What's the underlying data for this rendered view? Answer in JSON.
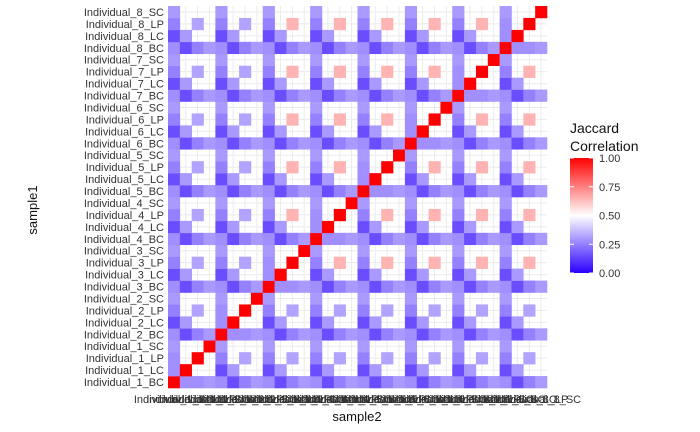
{
  "chart_data": {
    "type": "heatmap",
    "xlabel": "sample2",
    "ylabel": "sample1",
    "categories": [
      "Individual_1_BC",
      "Individual_1_LC",
      "Individual_1_LP",
      "Individual_1_SC",
      "Individual_2_BC",
      "Individual_2_LC",
      "Individual_2_LP",
      "Individual_2_SC",
      "Individual_3_BC",
      "Individual_3_LC",
      "Individual_3_LP",
      "Individual_3_SC",
      "Individual_4_BC",
      "Individual_4_LC",
      "Individual_4_LP",
      "Individual_4_SC",
      "Individual_5_BC",
      "Individual_5_LC",
      "Individual_5_LP",
      "Individual_5_SC",
      "Individual_6_BC",
      "Individual_6_LC",
      "Individual_6_LP",
      "Individual_6_SC",
      "Individual_7_BC",
      "Individual_7_LC",
      "Individual_7_LP",
      "Individual_7_SC",
      "Individual_8_BC",
      "Individual_8_LC",
      "Individual_8_LP",
      "Individual_8_SC"
    ],
    "values": [
      [
        1.0,
        0.28,
        0.28,
        0.3,
        0.28,
        0.15,
        0.25,
        0.3,
        0.28,
        0.15,
        0.25,
        0.3,
        0.28,
        0.15,
        0.25,
        0.3,
        0.28,
        0.15,
        0.25,
        0.3,
        0.28,
        0.15,
        0.25,
        0.3,
        0.28,
        0.15,
        0.25,
        0.3,
        0.28,
        0.15,
        0.25,
        0.3
      ],
      [
        0.28,
        1.0,
        0.35,
        0.4,
        0.15,
        0.3,
        0.4,
        0.35,
        0.15,
        0.3,
        0.4,
        0.35,
        0.15,
        0.3,
        0.4,
        0.35,
        0.15,
        0.3,
        0.4,
        0.35,
        0.15,
        0.3,
        0.4,
        0.35,
        0.15,
        0.3,
        0.4,
        0.35,
        0.15,
        0.3,
        0.4,
        0.35
      ],
      [
        0.28,
        0.35,
        1.0,
        0.3,
        0.25,
        0.4,
        0.32,
        0.3,
        0.25,
        0.4,
        0.32,
        0.3,
        0.25,
        0.4,
        0.32,
        0.3,
        0.25,
        0.4,
        0.32,
        0.3,
        0.25,
        0.4,
        0.32,
        0.3,
        0.25,
        0.4,
        0.32,
        0.3,
        0.25,
        0.4,
        0.32,
        0.3
      ],
      [
        0.3,
        0.4,
        0.3,
        1.0,
        0.3,
        0.35,
        0.3,
        0.4,
        0.3,
        0.35,
        0.3,
        0.4,
        0.3,
        0.35,
        0.3,
        0.4,
        0.3,
        0.35,
        0.3,
        0.4,
        0.3,
        0.35,
        0.3,
        0.4,
        0.3,
        0.35,
        0.3,
        0.4,
        0.3,
        0.35,
        0.3,
        0.4
      ],
      [
        0.28,
        0.15,
        0.25,
        0.3,
        1.0,
        0.28,
        0.28,
        0.3,
        0.28,
        0.15,
        0.25,
        0.3,
        0.28,
        0.15,
        0.25,
        0.3,
        0.28,
        0.15,
        0.25,
        0.3,
        0.28,
        0.15,
        0.25,
        0.3,
        0.28,
        0.15,
        0.25,
        0.3,
        0.28,
        0.15,
        0.25,
        0.3
      ],
      [
        0.15,
        0.3,
        0.4,
        0.35,
        0.28,
        1.0,
        0.35,
        0.4,
        0.15,
        0.3,
        0.4,
        0.35,
        0.15,
        0.3,
        0.4,
        0.35,
        0.15,
        0.3,
        0.4,
        0.35,
        0.15,
        0.3,
        0.4,
        0.35,
        0.15,
        0.3,
        0.4,
        0.35,
        0.15,
        0.3,
        0.4,
        0.35
      ],
      [
        0.25,
        0.4,
        0.32,
        0.3,
        0.28,
        0.35,
        1.0,
        0.3,
        0.25,
        0.4,
        0.32,
        0.3,
        0.25,
        0.4,
        0.32,
        0.3,
        0.25,
        0.4,
        0.32,
        0.3,
        0.25,
        0.4,
        0.32,
        0.3,
        0.25,
        0.4,
        0.32,
        0.3,
        0.25,
        0.4,
        0.32,
        0.3
      ],
      [
        0.3,
        0.35,
        0.3,
        0.4,
        0.3,
        0.4,
        0.3,
        1.0,
        0.3,
        0.35,
        0.3,
        0.4,
        0.3,
        0.35,
        0.3,
        0.4,
        0.3,
        0.35,
        0.3,
        0.4,
        0.3,
        0.35,
        0.3,
        0.4,
        0.3,
        0.35,
        0.3,
        0.4,
        0.3,
        0.35,
        0.3,
        0.4
      ],
      [
        0.28,
        0.15,
        0.25,
        0.3,
        0.28,
        0.15,
        0.25,
        0.3,
        1.0,
        0.28,
        0.28,
        0.3,
        0.28,
        0.15,
        0.25,
        0.3,
        0.28,
        0.15,
        0.25,
        0.3,
        0.28,
        0.15,
        0.25,
        0.3,
        0.28,
        0.15,
        0.25,
        0.3,
        0.28,
        0.15,
        0.25,
        0.3
      ],
      [
        0.15,
        0.3,
        0.4,
        0.35,
        0.15,
        0.3,
        0.4,
        0.35,
        0.28,
        1.0,
        0.35,
        0.4,
        0.15,
        0.3,
        0.55,
        0.35,
        0.15,
        0.3,
        0.55,
        0.35,
        0.15,
        0.3,
        0.55,
        0.35,
        0.15,
        0.3,
        0.55,
        0.35,
        0.15,
        0.3,
        0.55,
        0.35
      ],
      [
        0.25,
        0.4,
        0.32,
        0.3,
        0.25,
        0.4,
        0.32,
        0.3,
        0.28,
        0.35,
        1.0,
        0.3,
        0.25,
        0.55,
        0.65,
        0.3,
        0.25,
        0.55,
        0.65,
        0.3,
        0.25,
        0.55,
        0.65,
        0.3,
        0.25,
        0.55,
        0.65,
        0.3,
        0.25,
        0.55,
        0.65,
        0.3
      ],
      [
        0.3,
        0.35,
        0.3,
        0.4,
        0.3,
        0.35,
        0.3,
        0.4,
        0.3,
        0.4,
        0.3,
        1.0,
        0.3,
        0.35,
        0.3,
        0.4,
        0.3,
        0.35,
        0.3,
        0.4,
        0.3,
        0.35,
        0.3,
        0.4,
        0.3,
        0.35,
        0.3,
        0.4,
        0.3,
        0.35,
        0.3,
        0.4
      ],
      [
        0.28,
        0.15,
        0.25,
        0.3,
        0.28,
        0.15,
        0.25,
        0.3,
        0.28,
        0.15,
        0.25,
        0.3,
        1.0,
        0.28,
        0.28,
        0.3,
        0.28,
        0.15,
        0.25,
        0.3,
        0.28,
        0.15,
        0.25,
        0.3,
        0.28,
        0.15,
        0.25,
        0.3,
        0.28,
        0.15,
        0.25,
        0.3
      ],
      [
        0.15,
        0.3,
        0.4,
        0.35,
        0.15,
        0.3,
        0.4,
        0.35,
        0.15,
        0.3,
        0.55,
        0.35,
        0.28,
        1.0,
        0.35,
        0.4,
        0.15,
        0.3,
        0.55,
        0.35,
        0.15,
        0.3,
        0.55,
        0.35,
        0.15,
        0.3,
        0.55,
        0.35,
        0.15,
        0.3,
        0.55,
        0.35
      ],
      [
        0.25,
        0.4,
        0.32,
        0.3,
        0.25,
        0.4,
        0.32,
        0.3,
        0.25,
        0.55,
        0.65,
        0.3,
        0.28,
        0.35,
        1.0,
        0.3,
        0.25,
        0.55,
        0.65,
        0.3,
        0.25,
        0.55,
        0.65,
        0.3,
        0.25,
        0.55,
        0.65,
        0.3,
        0.25,
        0.55,
        0.65,
        0.3
      ],
      [
        0.3,
        0.35,
        0.3,
        0.4,
        0.3,
        0.35,
        0.3,
        0.4,
        0.3,
        0.35,
        0.3,
        0.4,
        0.3,
        0.4,
        0.3,
        1.0,
        0.3,
        0.35,
        0.3,
        0.4,
        0.3,
        0.35,
        0.3,
        0.4,
        0.3,
        0.35,
        0.3,
        0.4,
        0.3,
        0.35,
        0.3,
        0.4
      ],
      [
        0.28,
        0.15,
        0.25,
        0.3,
        0.28,
        0.15,
        0.25,
        0.3,
        0.28,
        0.15,
        0.25,
        0.3,
        0.28,
        0.15,
        0.25,
        0.3,
        1.0,
        0.28,
        0.28,
        0.3,
        0.28,
        0.15,
        0.25,
        0.3,
        0.28,
        0.15,
        0.25,
        0.3,
        0.28,
        0.15,
        0.25,
        0.3
      ],
      [
        0.15,
        0.3,
        0.4,
        0.35,
        0.15,
        0.3,
        0.4,
        0.35,
        0.15,
        0.3,
        0.55,
        0.35,
        0.15,
        0.3,
        0.55,
        0.35,
        0.28,
        1.0,
        0.35,
        0.4,
        0.15,
        0.3,
        0.55,
        0.35,
        0.15,
        0.3,
        0.55,
        0.35,
        0.15,
        0.3,
        0.55,
        0.35
      ],
      [
        0.25,
        0.4,
        0.32,
        0.3,
        0.25,
        0.4,
        0.32,
        0.3,
        0.25,
        0.55,
        0.65,
        0.3,
        0.25,
        0.55,
        0.65,
        0.3,
        0.28,
        0.35,
        1.0,
        0.3,
        0.25,
        0.55,
        0.65,
        0.3,
        0.25,
        0.55,
        0.65,
        0.3,
        0.25,
        0.55,
        0.65,
        0.3
      ],
      [
        0.3,
        0.35,
        0.3,
        0.4,
        0.3,
        0.35,
        0.3,
        0.4,
        0.3,
        0.35,
        0.3,
        0.4,
        0.3,
        0.35,
        0.3,
        0.4,
        0.3,
        0.4,
        0.3,
        1.0,
        0.3,
        0.35,
        0.3,
        0.4,
        0.3,
        0.35,
        0.3,
        0.4,
        0.3,
        0.35,
        0.3,
        0.4
      ],
      [
        0.28,
        0.15,
        0.25,
        0.3,
        0.28,
        0.15,
        0.25,
        0.3,
        0.28,
        0.15,
        0.25,
        0.3,
        0.28,
        0.15,
        0.25,
        0.3,
        0.28,
        0.15,
        0.25,
        0.3,
        1.0,
        0.28,
        0.28,
        0.3,
        0.28,
        0.15,
        0.25,
        0.3,
        0.28,
        0.15,
        0.25,
        0.3
      ],
      [
        0.15,
        0.3,
        0.4,
        0.35,
        0.15,
        0.3,
        0.4,
        0.35,
        0.15,
        0.3,
        0.55,
        0.35,
        0.15,
        0.3,
        0.55,
        0.35,
        0.15,
        0.3,
        0.55,
        0.35,
        0.28,
        1.0,
        0.35,
        0.4,
        0.15,
        0.3,
        0.55,
        0.35,
        0.15,
        0.3,
        0.55,
        0.35
      ],
      [
        0.25,
        0.4,
        0.32,
        0.3,
        0.25,
        0.4,
        0.32,
        0.3,
        0.25,
        0.55,
        0.65,
        0.3,
        0.25,
        0.55,
        0.65,
        0.3,
        0.25,
        0.55,
        0.65,
        0.3,
        0.28,
        0.35,
        1.0,
        0.3,
        0.25,
        0.55,
        0.65,
        0.3,
        0.25,
        0.55,
        0.65,
        0.3
      ],
      [
        0.3,
        0.35,
        0.3,
        0.4,
        0.3,
        0.35,
        0.3,
        0.4,
        0.3,
        0.35,
        0.3,
        0.4,
        0.3,
        0.35,
        0.3,
        0.4,
        0.3,
        0.35,
        0.3,
        0.4,
        0.3,
        0.4,
        0.3,
        1.0,
        0.3,
        0.35,
        0.3,
        0.4,
        0.3,
        0.35,
        0.3,
        0.4
      ],
      [
        0.28,
        0.15,
        0.25,
        0.3,
        0.28,
        0.15,
        0.25,
        0.3,
        0.28,
        0.15,
        0.25,
        0.3,
        0.28,
        0.15,
        0.25,
        0.3,
        0.28,
        0.15,
        0.25,
        0.3,
        0.28,
        0.15,
        0.25,
        0.3,
        1.0,
        0.28,
        0.28,
        0.3,
        0.28,
        0.15,
        0.25,
        0.3
      ],
      [
        0.15,
        0.3,
        0.4,
        0.35,
        0.15,
        0.3,
        0.4,
        0.35,
        0.15,
        0.3,
        0.55,
        0.35,
        0.15,
        0.3,
        0.55,
        0.35,
        0.15,
        0.3,
        0.55,
        0.35,
        0.15,
        0.3,
        0.55,
        0.35,
        0.28,
        1.0,
        0.35,
        0.4,
        0.15,
        0.3,
        0.55,
        0.35
      ],
      [
        0.25,
        0.4,
        0.32,
        0.3,
        0.25,
        0.4,
        0.32,
        0.3,
        0.25,
        0.55,
        0.65,
        0.3,
        0.25,
        0.55,
        0.65,
        0.3,
        0.25,
        0.55,
        0.65,
        0.3,
        0.25,
        0.55,
        0.65,
        0.3,
        0.28,
        0.35,
        1.0,
        0.3,
        0.25,
        0.55,
        0.65,
        0.3
      ],
      [
        0.3,
        0.35,
        0.3,
        0.4,
        0.3,
        0.35,
        0.3,
        0.4,
        0.3,
        0.35,
        0.3,
        0.4,
        0.3,
        0.35,
        0.3,
        0.4,
        0.3,
        0.35,
        0.3,
        0.4,
        0.3,
        0.35,
        0.3,
        0.4,
        0.3,
        0.4,
        0.3,
        1.0,
        0.3,
        0.35,
        0.3,
        0.4
      ],
      [
        0.28,
        0.15,
        0.25,
        0.3,
        0.28,
        0.15,
        0.25,
        0.3,
        0.28,
        0.15,
        0.25,
        0.3,
        0.28,
        0.15,
        0.25,
        0.3,
        0.28,
        0.15,
        0.25,
        0.3,
        0.28,
        0.15,
        0.25,
        0.3,
        0.28,
        0.15,
        0.25,
        0.3,
        1.0,
        0.28,
        0.28,
        0.3
      ],
      [
        0.15,
        0.3,
        0.4,
        0.35,
        0.15,
        0.3,
        0.4,
        0.35,
        0.15,
        0.3,
        0.55,
        0.35,
        0.15,
        0.3,
        0.55,
        0.35,
        0.15,
        0.3,
        0.55,
        0.35,
        0.15,
        0.3,
        0.55,
        0.35,
        0.15,
        0.3,
        0.55,
        0.35,
        0.28,
        1.0,
        0.35,
        0.4
      ],
      [
        0.25,
        0.4,
        0.32,
        0.3,
        0.25,
        0.4,
        0.32,
        0.3,
        0.25,
        0.55,
        0.65,
        0.3,
        0.25,
        0.55,
        0.65,
        0.3,
        0.25,
        0.55,
        0.65,
        0.3,
        0.25,
        0.55,
        0.65,
        0.3,
        0.25,
        0.55,
        0.65,
        0.3,
        0.28,
        0.35,
        1.0,
        0.3
      ],
      [
        0.3,
        0.35,
        0.3,
        0.4,
        0.3,
        0.35,
        0.3,
        0.4,
        0.3,
        0.35,
        0.3,
        0.4,
        0.3,
        0.35,
        0.3,
        0.4,
        0.3,
        0.35,
        0.3,
        0.4,
        0.3,
        0.35,
        0.3,
        0.4,
        0.3,
        0.35,
        0.3,
        0.4,
        0.3,
        0.4,
        0.3,
        1.0
      ]
    ],
    "blank_pattern": [
      "LC:LP",
      "LC:SC",
      "SC:LP",
      "SC:SC_offdiag"
    ],
    "color_scale": {
      "title": "Jaccard\nCorrelation",
      "low": "#2b00ff",
      "mid": "#ffffff",
      "high": "#ff0000",
      "midpoint": 0.5,
      "limits": [
        0,
        1
      ],
      "breaks": [
        0.0,
        0.25,
        0.5,
        0.75,
        1.0
      ],
      "break_labels": [
        "0.00",
        "0.25",
        "0.50",
        "0.75",
        "1.00"
      ]
    },
    "legend_title_lines": [
      "Jaccard",
      "Correlation"
    ],
    "grid": true,
    "legend_position": "right"
  }
}
